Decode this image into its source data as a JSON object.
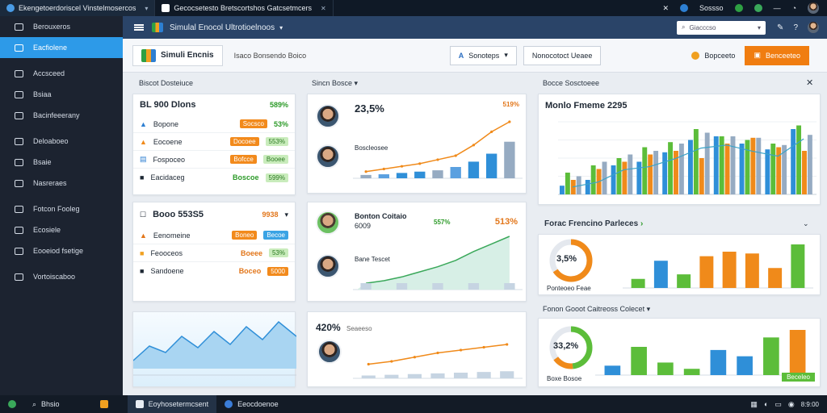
{
  "browser": {
    "tabs": [
      {
        "title": "Ekengetoerdoriscel Vinstelmosercos"
      },
      {
        "title": "Gecocsetesto Bretscortshos Gatcsetmcers"
      }
    ],
    "status_text": "Sossso"
  },
  "sidebar": {
    "items": [
      {
        "label": "Berouxeros"
      },
      {
        "label": "Eacfiolene"
      },
      {
        "label": "Accsceed"
      },
      {
        "label": "Bsiaa"
      },
      {
        "label": "Bacinfeeerany"
      },
      {
        "label": "Deloaboeo"
      },
      {
        "label": "Bsaie"
      },
      {
        "label": "Nasreraes"
      },
      {
        "label": "Fotcon Fooleg"
      },
      {
        "label": "Ecosiele"
      },
      {
        "label": "Eooeiod fsetige"
      },
      {
        "label": "Vortoiscaboo"
      }
    ]
  },
  "header": {
    "title": "Simulal Enocol Ultrotioelnoos",
    "search_placeholder": "Giacccso"
  },
  "toolbar": {
    "brand": "Simuli Encnis",
    "subtitle": "Isaco Bonsendo Boico",
    "dropdown_label": "Sonoteps",
    "secondary_btn": "Nonocotoct Ueaee",
    "badge_label": "Bopceeto",
    "primary_btn": "Benceeteo"
  },
  "sections": {
    "left_title": "Biscot Dosteiuce",
    "mid_title": "Sincn Bosce",
    "right_title": "Bocce Sosctoeee",
    "right_mid_title": "Forac Frencino Parleces",
    "right_bottom_title": "Fonon Gooot Caitreoss Colecet"
  },
  "kpi_card1": {
    "title": "BL 900 Dlons",
    "title_value": "589%",
    "rows": [
      {
        "label": "Bopone",
        "chip": "Socsco",
        "value": "53%"
      },
      {
        "label": "Eocoene",
        "chip": "Docoee",
        "value": "553%"
      },
      {
        "label": "Fospoceo",
        "chip": "Bofcce",
        "value": "Booee"
      },
      {
        "label": "Eacidaceg",
        "chip": "Boscoe",
        "value": "599%"
      }
    ]
  },
  "kpi_card2": {
    "title": "Booo 553S5",
    "title_value": "9938",
    "rows": [
      {
        "label": "Eenomeine",
        "chip": "Boneo",
        "value": "Becoe"
      },
      {
        "label": "Feooceos",
        "chip": "Boeee",
        "value": "53%"
      },
      {
        "label": "Sandoene",
        "chip": "Boceo",
        "value": "5000"
      }
    ]
  },
  "sim_card1": {
    "big": "23,5%",
    "label": "Boscleosee",
    "tag": "519%"
  },
  "sim_card2": {
    "big": "Bonton Coitaio",
    "sub": "6009",
    "label": "Bane Tescet",
    "tag": "513%",
    "tag2": "557%"
  },
  "sim_card3": {
    "big": "420%",
    "label": "Seaeeso"
  },
  "right_chart": {
    "title": "Monlo Fmeme 2295"
  },
  "donut1": {
    "value": "3,5%",
    "label": "Ponteoeo Feae"
  },
  "donut2": {
    "value": "33,2%",
    "label": "Boxe Bosoe",
    "footer_chip": "Beceleo"
  },
  "taskbar": {
    "search": "Bhsio",
    "app1": "Eoyhosetermcsent",
    "app2": "Eeocdoenoe",
    "clock": "8:9:00"
  },
  "colors": {
    "blue": "#2f8fd8",
    "green": "#5cbd3a",
    "orange": "#f08a1a",
    "grey_blue": "#96abc2",
    "accent": "#f07d10"
  },
  "chart_data": [
    {
      "type": "bar",
      "name": "top-middle chart",
      "values": [
        5,
        6,
        8,
        10,
        12,
        17,
        25,
        37,
        55
      ],
      "line": [
        10,
        14,
        18,
        22,
        28,
        34,
        50,
        70,
        85
      ]
    },
    {
      "type": "area",
      "name": "middle chart",
      "values": [
        10,
        14,
        20,
        28,
        36,
        46,
        60,
        72,
        84
      ]
    },
    {
      "type": "bar",
      "name": "bottom-middle chart",
      "values": [
        4,
        5,
        6,
        7,
        8,
        9,
        10
      ],
      "line": [
        20,
        24,
        30,
        36,
        40,
        44,
        48
      ]
    },
    {
      "type": "bar",
      "name": "right main chart",
      "series": [
        {
          "name": "blue",
          "values": [
            12,
            20,
            40,
            45,
            58,
            75,
            80,
            70,
            62,
            90
          ]
        },
        {
          "name": "green",
          "values": [
            30,
            40,
            50,
            65,
            72,
            90,
            80,
            75,
            70,
            95
          ]
        },
        {
          "name": "orange",
          "values": [
            20,
            35,
            45,
            55,
            60,
            50,
            70,
            78,
            65,
            60
          ]
        },
        {
          "name": "grey",
          "values": [
            25,
            45,
            55,
            60,
            70,
            85,
            80,
            78,
            68,
            82
          ]
        }
      ]
    },
    {
      "type": "bar",
      "name": "right middle chart",
      "values": [
        10,
        30,
        15,
        35,
        40,
        38,
        22,
        48
      ]
    },
    {
      "type": "bar",
      "name": "right bottom chart",
      "values": [
        15,
        45,
        20,
        10,
        40,
        30,
        60,
        72
      ]
    }
  ]
}
